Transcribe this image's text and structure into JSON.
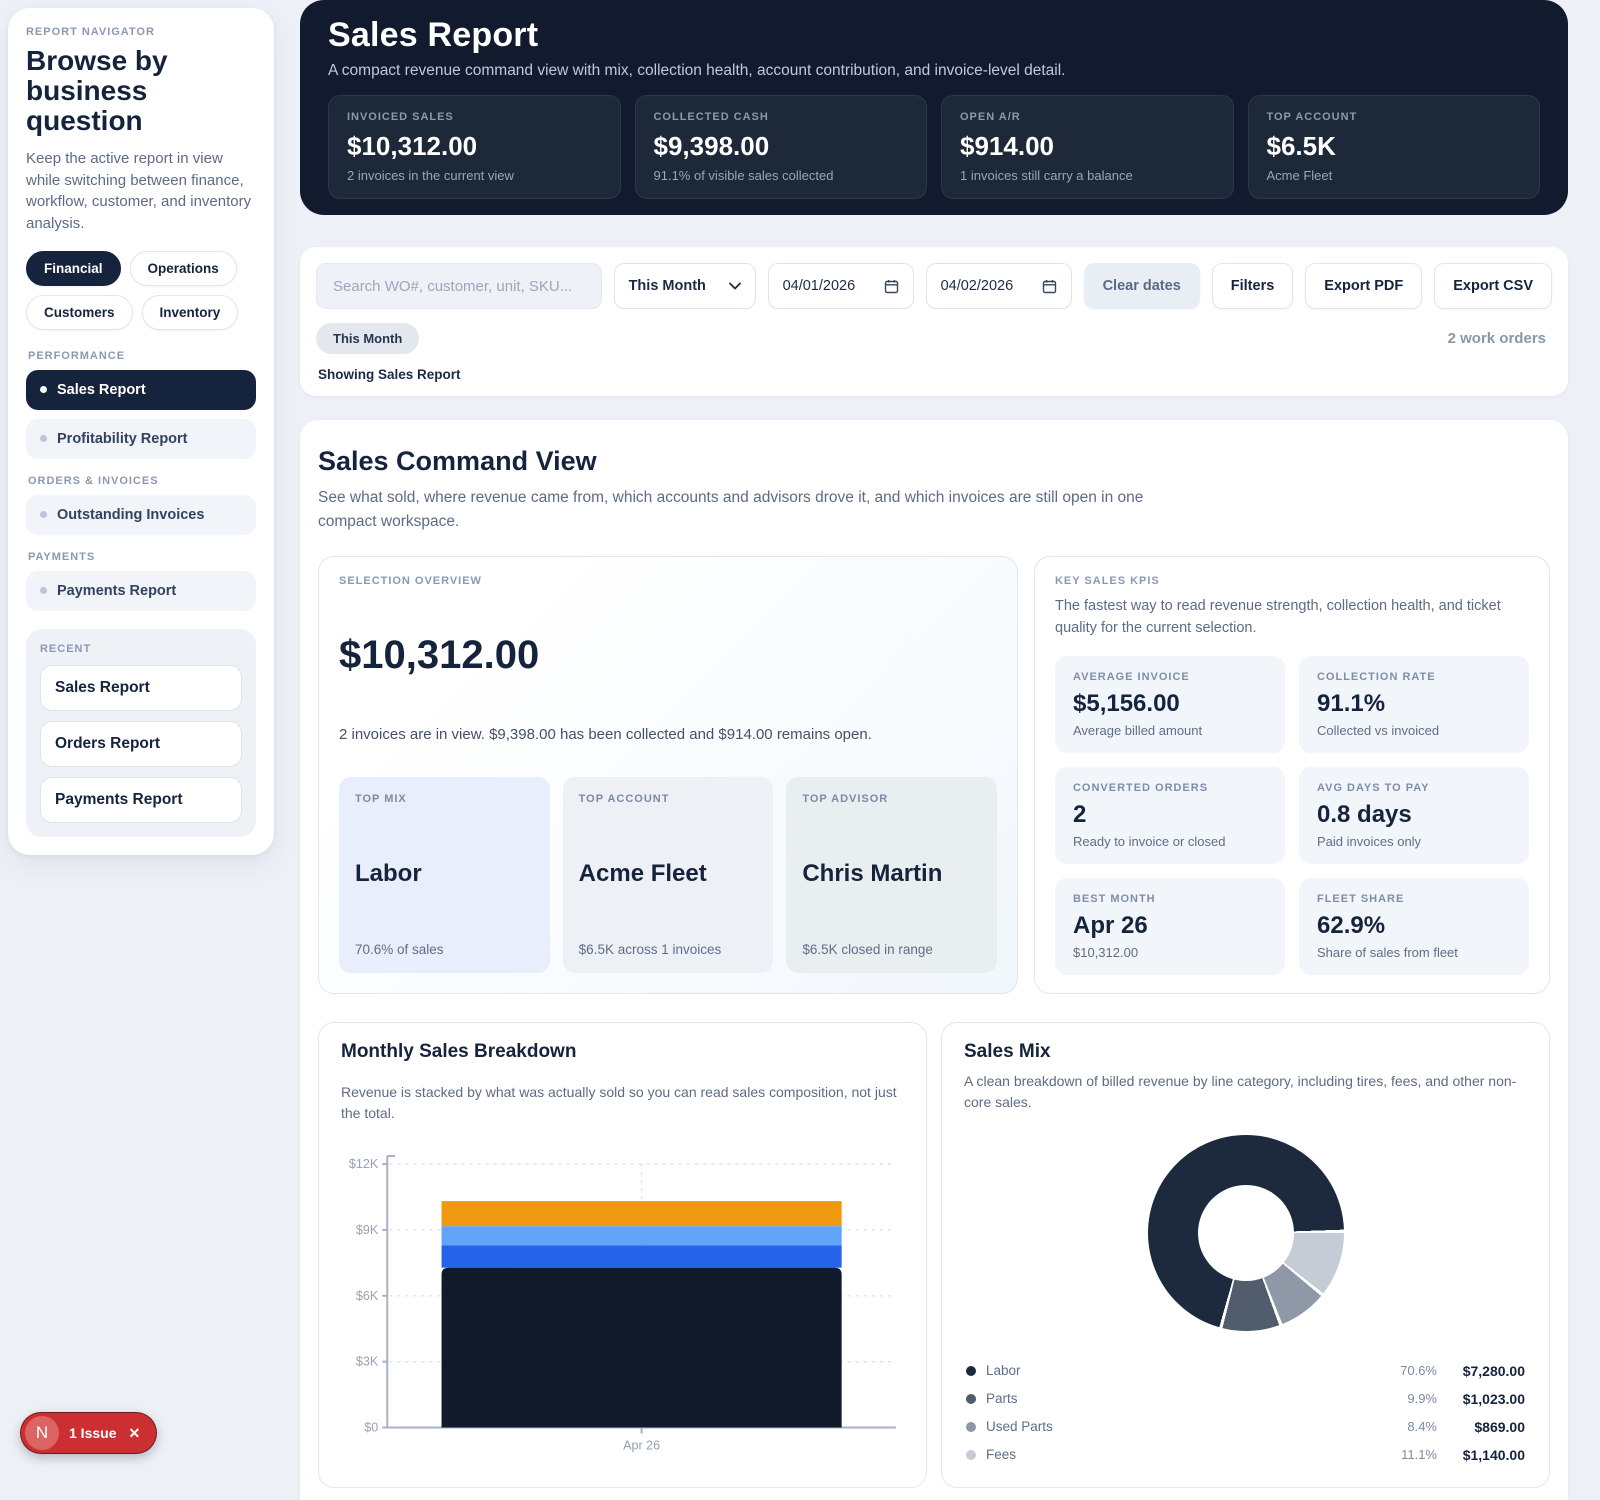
{
  "sidebar": {
    "kicker": "REPORT NAVIGATOR",
    "title": "Browse by business question",
    "description": "Keep the active report in view while switching between finance, workflow, customer, and inventory analysis.",
    "chips": [
      {
        "label": "Financial"
      },
      {
        "label": "Operations"
      },
      {
        "label": "Customers"
      },
      {
        "label": "Inventory"
      }
    ],
    "sections": [
      {
        "label": "PERFORMANCE",
        "items": [
          {
            "label": "Sales Report"
          },
          {
            "label": "Profitability Report"
          }
        ]
      },
      {
        "label": "ORDERS & INVOICES",
        "items": [
          {
            "label": "Outstanding Invoices"
          }
        ]
      },
      {
        "label": "PAYMENTS",
        "items": [
          {
            "label": "Payments Report"
          }
        ]
      }
    ],
    "recent": {
      "label": "RECENT",
      "items": [
        {
          "label": "Sales Report"
        },
        {
          "label": "Orders Report"
        },
        {
          "label": "Payments Report"
        }
      ]
    }
  },
  "header": {
    "title": "Sales Report",
    "subtitle": "A compact revenue command view with mix, collection health, account contribution, and invoice-level detail.",
    "kpis": [
      {
        "label": "INVOICED SALES",
        "value": "$10,312.00",
        "sub": "2 invoices in the current view"
      },
      {
        "label": "COLLECTED CASH",
        "value": "$9,398.00",
        "sub": "91.1% of visible sales collected"
      },
      {
        "label": "OPEN A/R",
        "value": "$914.00",
        "sub": "1 invoices still carry a balance"
      },
      {
        "label": "TOP ACCOUNT",
        "value": "$6.5K",
        "sub": "Acme Fleet"
      }
    ]
  },
  "filters": {
    "search_placeholder": "Search WO#, customer, unit, SKU...",
    "range_select": "This Month",
    "date_from": "04/01/2026",
    "date_to": "04/02/2026",
    "clear_dates": "Clear dates",
    "filters_label": "Filters",
    "export_pdf": "Export PDF",
    "export_csv": "Export CSV",
    "active_chip": "This Month",
    "count": "2 work orders",
    "showing": "Showing Sales Report"
  },
  "command_view": {
    "title": "Sales Command View",
    "description": "See what sold, where revenue came from, which accounts and advisors drove it, and which invoices are still open in one compact workspace.",
    "selection": {
      "kicker": "SELECTION OVERVIEW",
      "total": "$10,312.00",
      "summary": "2 invoices are in view. $9,398.00 has been collected and $914.00 remains open.",
      "highlights": [
        {
          "label": "TOP MIX",
          "value": "Labor",
          "sub": "70.6% of sales"
        },
        {
          "label": "TOP ACCOUNT",
          "value": "Acme Fleet",
          "sub": "$6.5K across 1 invoices"
        },
        {
          "label": "TOP ADVISOR",
          "value": "Chris Martin",
          "sub": "$6.5K closed in range"
        }
      ]
    },
    "kpis": {
      "kicker": "KEY SALES KPIS",
      "description": "The fastest way to read revenue strength, collection health, and ticket quality for the current selection.",
      "tiles": [
        {
          "label": "AVERAGE INVOICE",
          "value": "$5,156.00",
          "sub": "Average billed amount"
        },
        {
          "label": "COLLECTION RATE",
          "value": "91.1%",
          "sub": "Collected vs invoiced"
        },
        {
          "label": "CONVERTED ORDERS",
          "value": "2",
          "sub": "Ready to invoice or closed"
        },
        {
          "label": "AVG DAYS TO PAY",
          "value": "0.8 days",
          "sub": "Paid invoices only"
        },
        {
          "label": "BEST MONTH",
          "value": "Apr 26",
          "sub": "$10,312.00"
        },
        {
          "label": "FLEET SHARE",
          "value": "62.9%",
          "sub": "Share of sales from fleet"
        }
      ]
    }
  },
  "chart_data": [
    {
      "type": "bar",
      "stacked": true,
      "title": "Monthly Sales Breakdown",
      "subtitle": "Revenue is stacked by what was actually sold so you can read sales composition, not just the total.",
      "categories": [
        "Apr 26"
      ],
      "series": [
        {
          "name": "Labor",
          "values": [
            7280
          ],
          "color": "#111a2b"
        },
        {
          "name": "Parts",
          "values": [
            1023
          ],
          "color": "#2563eb"
        },
        {
          "name": "Used Parts",
          "values": [
            869
          ],
          "color": "#60a5fa"
        },
        {
          "name": "Fees",
          "values": [
            1140
          ],
          "color": "#f0980e"
        }
      ],
      "xlabel": "",
      "ylabel": "",
      "ylim": [
        0,
        12000
      ],
      "yticks": [
        "$0",
        "$3K",
        "$6K",
        "$9K",
        "$12K"
      ],
      "grid": true
    },
    {
      "type": "pie",
      "donut": true,
      "title": "Sales Mix",
      "subtitle": "A clean breakdown of billed revenue by line category, including tires, fees, and other non-core sales.",
      "slices": [
        {
          "label": "Labor",
          "pct": "70.6%",
          "value": "$7,280.00",
          "color": "#1d2a3e"
        },
        {
          "label": "Parts",
          "pct": "9.9%",
          "value": "$1,023.00",
          "color": "#515c6d"
        },
        {
          "label": "Used Parts",
          "pct": "8.4%",
          "value": "$869.00",
          "color": "#8f98a6"
        },
        {
          "label": "Fees",
          "pct": "11.1%",
          "value": "$1,140.00",
          "color": "#c6ccd6"
        }
      ]
    }
  ],
  "issue_badge": {
    "initial": "N",
    "label": "1 Issue",
    "close": "✕"
  }
}
